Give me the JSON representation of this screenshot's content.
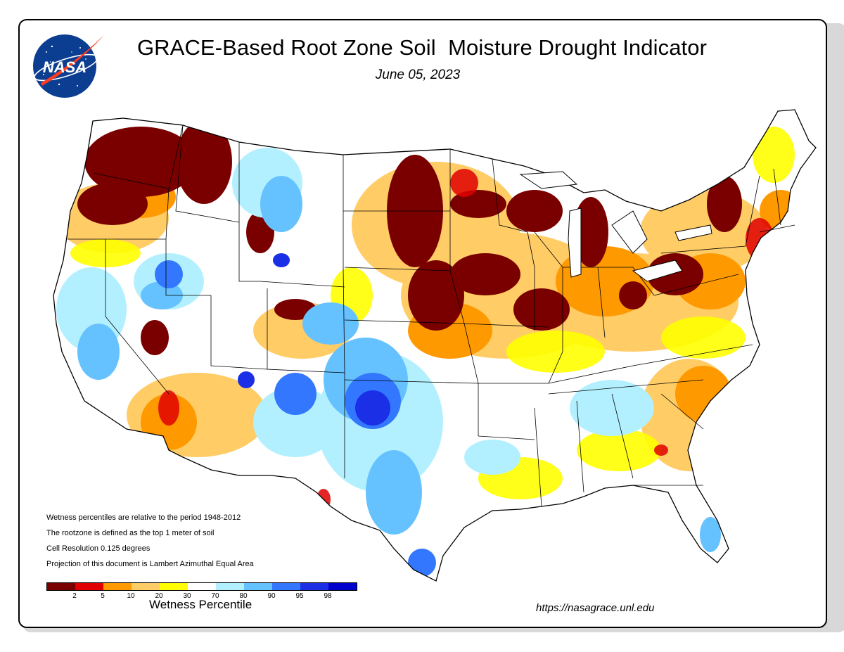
{
  "header": {
    "title": "GRACE-Based Root Zone Soil  Moisture Drought Indicator",
    "date": "June 05, 2023"
  },
  "logo": {
    "text": "NASA",
    "icon": "nasa-meatball-logo"
  },
  "notes": [
    "Wetness percentiles are relative to the period 1948-2012",
    "The rootzone is defined as the top 1 meter of soil",
    "Cell Resolution 0.125 degrees",
    "Projection of this document is Lambert Azimuthal Equal Area"
  ],
  "legend": {
    "title": "Wetness Percentile",
    "colors": [
      "#7a0000",
      "#e10000",
      "#ff9900",
      "#ffcc66",
      "#ffff00",
      "#ffffff",
      "#b3f0ff",
      "#66c2ff",
      "#3377ff",
      "#1a2fe6",
      "#0000cc"
    ],
    "tick_labels": [
      "2",
      "5",
      "10",
      "20",
      "30",
      "70",
      "80",
      "90",
      "95",
      "98"
    ]
  },
  "footer": {
    "url": "https://nasagrace.unl.edu"
  },
  "map": {
    "region": "Contiguous United States",
    "background_color": "#ffffff"
  }
}
